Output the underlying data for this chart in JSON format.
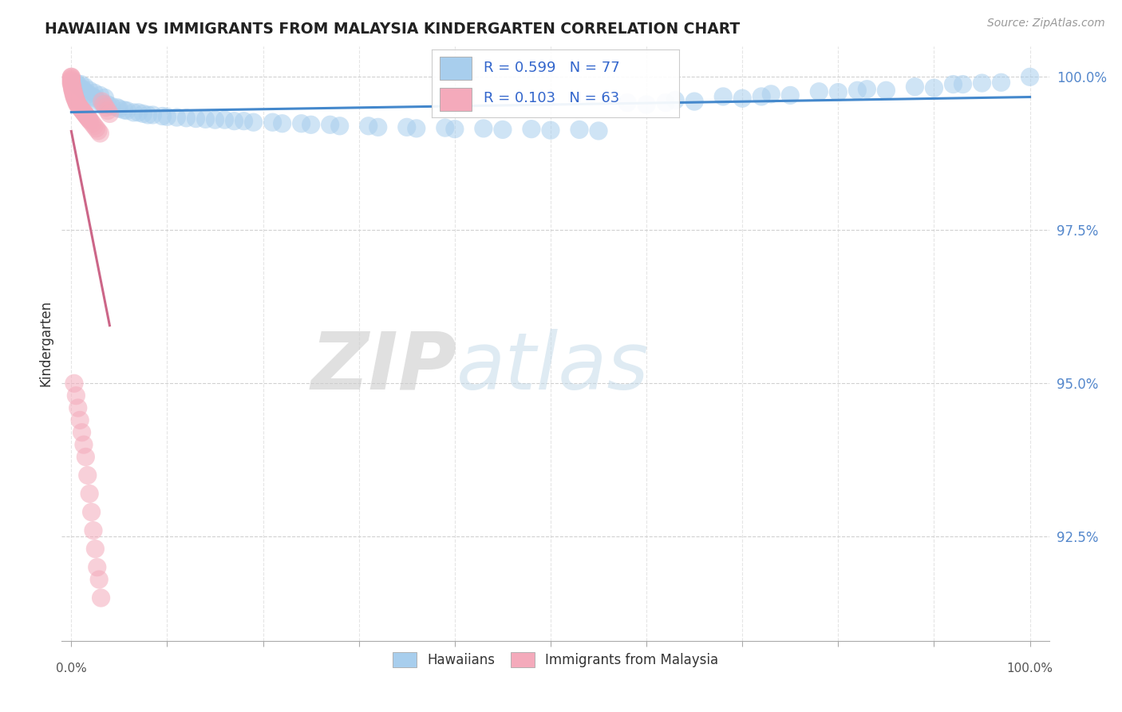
{
  "title": "HAWAIIAN VS IMMIGRANTS FROM MALAYSIA KINDERGARTEN CORRELATION CHART",
  "source": "Source: ZipAtlas.com",
  "ylabel": "Kindergarten",
  "ytick_labels": [
    "92.5%",
    "95.0%",
    "97.5%",
    "100.0%"
  ],
  "ytick_values": [
    0.925,
    0.95,
    0.975,
    1.0
  ],
  "xlim": [
    -0.01,
    1.02
  ],
  "ylim": [
    0.908,
    1.005
  ],
  "color_blue": "#A8CEED",
  "color_pink": "#F4AABB",
  "trendline_blue_color": "#4488CC",
  "trendline_pink_color": "#CC6688",
  "watermark_zip": "ZIP",
  "watermark_atlas": "atlas",
  "blue_x": [
    0.005,
    0.008,
    0.012,
    0.015,
    0.018,
    0.022,
    0.025,
    0.028,
    0.032,
    0.038,
    0.042,
    0.05,
    0.058,
    0.065,
    0.075,
    0.085,
    0.095,
    0.11,
    0.13,
    0.15,
    0.17,
    0.19,
    0.22,
    0.25,
    0.28,
    0.32,
    0.36,
    0.4,
    0.45,
    0.5,
    0.55,
    0.6,
    0.65,
    0.7,
    0.75,
    0.8,
    0.85,
    0.9,
    0.95,
    1.0,
    0.01,
    0.014,
    0.019,
    0.024,
    0.03,
    0.035,
    0.048,
    0.055,
    0.07,
    0.08,
    0.1,
    0.12,
    0.14,
    0.16,
    0.18,
    0.21,
    0.24,
    0.27,
    0.31,
    0.35,
    0.39,
    0.43,
    0.48,
    0.53,
    0.58,
    0.63,
    0.68,
    0.73,
    0.78,
    0.83,
    0.88,
    0.93,
    0.97,
    0.62,
    0.72,
    0.82,
    0.92
  ],
  "blue_y": [
    0.999,
    0.9985,
    0.998,
    0.9975,
    0.9972,
    0.9968,
    0.9965,
    0.996,
    0.9958,
    0.9955,
    0.9952,
    0.9948,
    0.9945,
    0.9942,
    0.994,
    0.9938,
    0.9936,
    0.9934,
    0.9932,
    0.993,
    0.9928,
    0.9926,
    0.9924,
    0.9922,
    0.992,
    0.9918,
    0.9916,
    0.9915,
    0.9914,
    0.9913,
    0.9912,
    0.9955,
    0.996,
    0.9965,
    0.997,
    0.9975,
    0.9978,
    0.9982,
    0.999,
    1.0,
    0.9988,
    0.9984,
    0.9978,
    0.9974,
    0.997,
    0.9966,
    0.995,
    0.9946,
    0.9942,
    0.9938,
    0.9935,
    0.9933,
    0.9931,
    0.993,
    0.9928,
    0.9926,
    0.9924,
    0.9922,
    0.992,
    0.9918,
    0.9917,
    0.9916,
    0.9915,
    0.9914,
    0.9958,
    0.9962,
    0.9968,
    0.9972,
    0.9976,
    0.998,
    0.9984,
    0.9988,
    0.9991,
    0.9958,
    0.9968,
    0.9978,
    0.9988
  ],
  "pink_x": [
    0.0,
    0.0,
    0.0,
    0.0,
    0.0,
    0.0,
    0.0,
    0.0,
    0.001,
    0.001,
    0.001,
    0.001,
    0.002,
    0.002,
    0.002,
    0.003,
    0.003,
    0.003,
    0.004,
    0.004,
    0.005,
    0.005,
    0.006,
    0.006,
    0.007,
    0.008,
    0.009,
    0.01,
    0.011,
    0.012,
    0.013,
    0.014,
    0.015,
    0.016,
    0.017,
    0.018,
    0.019,
    0.02,
    0.022,
    0.024,
    0.026,
    0.028,
    0.03,
    0.032,
    0.034,
    0.036,
    0.038,
    0.04,
    0.003,
    0.005,
    0.007,
    0.009,
    0.011,
    0.013,
    0.015,
    0.017,
    0.019,
    0.021,
    0.023,
    0.025,
    0.027,
    0.029,
    0.031
  ],
  "pink_y": [
    1.0,
    1.0,
    0.9998,
    0.9996,
    0.9994,
    0.9992,
    0.999,
    0.9988,
    0.9986,
    0.9984,
    0.9982,
    0.998,
    0.9978,
    0.9976,
    0.9974,
    0.9972,
    0.997,
    0.9968,
    0.9966,
    0.9964,
    0.9962,
    0.996,
    0.9958,
    0.9956,
    0.9954,
    0.9952,
    0.995,
    0.9948,
    0.9946,
    0.9944,
    0.9942,
    0.994,
    0.9938,
    0.9936,
    0.9934,
    0.9932,
    0.993,
    0.9928,
    0.9924,
    0.992,
    0.9916,
    0.9912,
    0.9908,
    0.996,
    0.9955,
    0.995,
    0.9945,
    0.994,
    0.95,
    0.948,
    0.946,
    0.944,
    0.942,
    0.94,
    0.938,
    0.935,
    0.932,
    0.929,
    0.926,
    0.923,
    0.92,
    0.918,
    0.915
  ]
}
